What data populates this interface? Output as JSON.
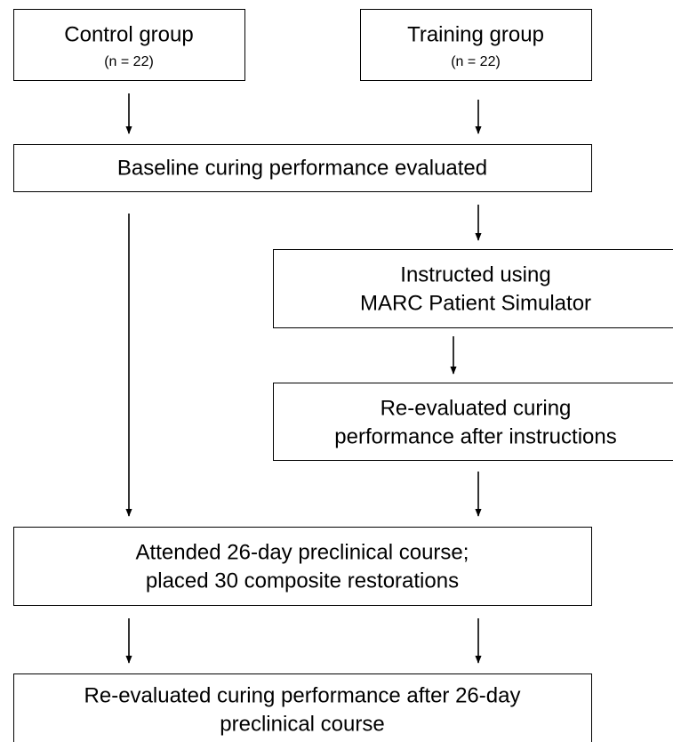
{
  "nodes": [
    {
      "lines": [
        "Control group"
      ],
      "note": "(n = 22)"
    },
    {
      "lines": [
        "Training group"
      ],
      "note": "(n = 22)"
    },
    {
      "lines": [
        "Baseline curing performance evaluated"
      ]
    },
    {
      "lines": [
        "Instructed using",
        "MARC Patient Simulator"
      ]
    },
    {
      "lines": [
        "Re-evaluated curing",
        "performance after instructions"
      ]
    },
    {
      "lines": [
        "Attended 26-day preclinical course;",
        "placed 30 composite restorations"
      ]
    },
    {
      "lines": [
        "Re-evaluated curing performance after 26-day",
        "preclinical course"
      ]
    }
  ]
}
